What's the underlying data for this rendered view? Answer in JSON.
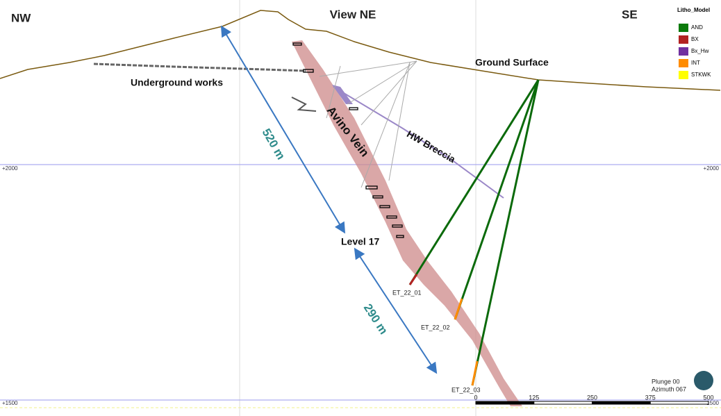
{
  "header": {
    "left": "NW",
    "center": "View NE",
    "right": "SE"
  },
  "legend": {
    "title": "Litho_Model",
    "items": [
      {
        "label": "AND",
        "color": "#0b7a0b"
      },
      {
        "label": "BX",
        "color": "#b22222"
      },
      {
        "label": "Bx_Hw",
        "color": "#7030a0"
      },
      {
        "label": "INT",
        "color": "#ff8c00"
      },
      {
        "label": "STKWK",
        "color": "#ffff00"
      }
    ]
  },
  "annotations": {
    "ground_surface": "Ground Surface",
    "underground_works": "Underground works",
    "vein": "Avino Vein",
    "breccia": "HW Breccia",
    "distance_1": "520 m",
    "distance_2": "290 m",
    "level": "Level 17"
  },
  "drillholes": [
    "ET_22_01",
    "ET_22_02",
    "ET_22_03"
  ],
  "elevations": {
    "upper_left": "+2000",
    "upper_right": "+2000",
    "lower_left": "+1500",
    "lower_right": "+1500"
  },
  "view": {
    "plunge": "Plunge 00",
    "azimuth": "Azimuth 067"
  },
  "scale_bar": [
    "0",
    "125",
    "250",
    "375",
    "500"
  ]
}
